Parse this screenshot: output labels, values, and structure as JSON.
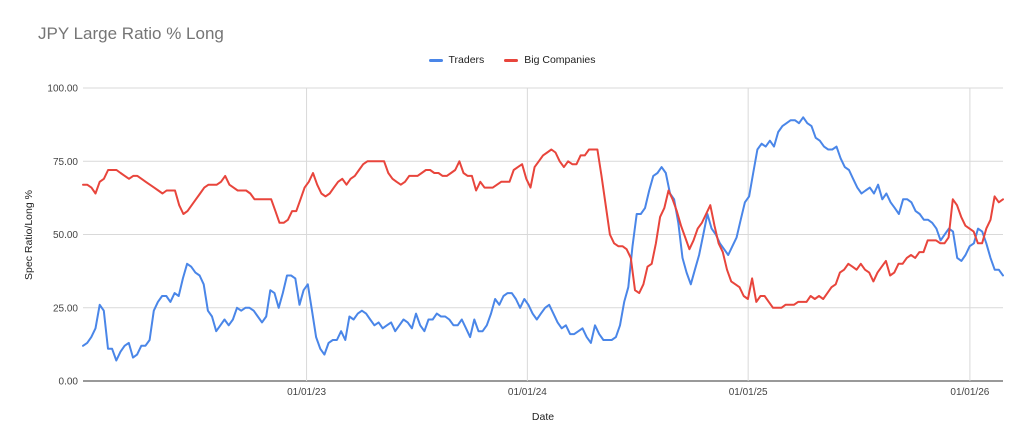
{
  "chart_data": {
    "type": "line",
    "title": "JPY Large Ratio % Long",
    "xlabel": "Date",
    "ylabel": "Spec Ratio/Long %",
    "ylim": [
      0,
      100
    ],
    "yticks": [
      "0.00",
      "25.00",
      "50.00",
      "75.00",
      "100.00"
    ],
    "xticks": [
      {
        "label": "01/01/23",
        "t": 0.243
      },
      {
        "label": "01/01/24",
        "t": 0.483
      },
      {
        "label": "01/01/25",
        "t": 0.723
      },
      {
        "label": "01/01/26",
        "t": 0.964
      }
    ],
    "grid": true,
    "legend_position": "top-center",
    "series": [
      {
        "name": "Traders",
        "color": "#4a86e8",
        "values": [
          12,
          13,
          15,
          18,
          26,
          24,
          11,
          11,
          7,
          10,
          12,
          13,
          8,
          9,
          12,
          12,
          14,
          24,
          27,
          29,
          29,
          27,
          30,
          29,
          35,
          40,
          39,
          37,
          36,
          33,
          24,
          22,
          17,
          19,
          21,
          19,
          21,
          25,
          24,
          25,
          25,
          24,
          22,
          20,
          22,
          31,
          30,
          25,
          30,
          36,
          36,
          35,
          26,
          31,
          33,
          24,
          15,
          11,
          9,
          13,
          14,
          14,
          17,
          14,
          22,
          21,
          23,
          24,
          23,
          21,
          19,
          20,
          18,
          19,
          20,
          17,
          19,
          21,
          20,
          18,
          23,
          19,
          17,
          21,
          21,
          23,
          22,
          22,
          21,
          19,
          19,
          21,
          18,
          15,
          21,
          17,
          17,
          19,
          23,
          28,
          26,
          29,
          30,
          30,
          28,
          25,
          28,
          26,
          23,
          21,
          23,
          25,
          26,
          23,
          20,
          18,
          19,
          16,
          16,
          17,
          18,
          15,
          13,
          19,
          16,
          14,
          14,
          14,
          15,
          19,
          27,
          32,
          46,
          57,
          57,
          59,
          65,
          70,
          71,
          73,
          71,
          64,
          62,
          54,
          42,
          37,
          33,
          38,
          43,
          50,
          57,
          52,
          50,
          47,
          45,
          43,
          46,
          49,
          55,
          61,
          63,
          71,
          79,
          81,
          80,
          82,
          80,
          85,
          87,
          88,
          89,
          89,
          88,
          90,
          88,
          87,
          83,
          82,
          80,
          79,
          79,
          80,
          76,
          73,
          72,
          69,
          66,
          64,
          65,
          66,
          64,
          67,
          62,
          64,
          61,
          59,
          57,
          62,
          62,
          61,
          58,
          57,
          55,
          55,
          54,
          52,
          48,
          50,
          52,
          51,
          42,
          41,
          43,
          46,
          47,
          52,
          51,
          47,
          42,
          38,
          38,
          36
        ]
      },
      {
        "name": "Big Companies",
        "color": "#e8453c",
        "values": [
          67,
          67,
          66,
          64,
          68,
          69,
          72,
          72,
          72,
          71,
          70,
          69,
          70,
          70,
          69,
          68,
          67,
          66,
          65,
          64,
          65,
          65,
          65,
          60,
          57,
          58,
          60,
          62,
          64,
          66,
          67,
          67,
          67,
          68,
          70,
          67,
          66,
          65,
          65,
          65,
          64,
          62,
          62,
          62,
          62,
          62,
          58,
          54,
          54,
          55,
          58,
          58,
          62,
          66,
          68,
          71,
          67,
          64,
          63,
          64,
          66,
          68,
          69,
          67,
          69,
          70,
          72,
          74,
          75,
          75,
          75,
          75,
          75,
          71,
          69,
          68,
          67,
          68,
          70,
          70,
          70,
          71,
          72,
          72,
          71,
          71,
          70,
          70,
          71,
          72,
          75,
          71,
          70,
          70,
          65,
          68,
          66,
          66,
          66,
          67,
          68,
          68,
          68,
          72,
          73,
          74,
          69,
          66,
          73,
          75,
          77,
          78,
          79,
          78,
          75,
          73,
          75,
          74,
          74,
          77,
          77,
          79,
          79,
          79,
          70,
          60,
          50,
          47,
          46,
          46,
          45,
          42,
          31,
          30,
          33,
          39,
          40,
          47,
          56,
          59,
          65,
          62,
          58,
          53,
          49,
          45,
          48,
          52,
          54,
          57,
          60,
          53,
          47,
          44,
          38,
          34,
          33,
          32,
          29,
          28,
          35,
          27,
          29,
          29,
          27,
          25,
          25,
          25,
          26,
          26,
          26,
          27,
          27,
          27,
          29,
          28,
          29,
          28,
          30,
          32,
          33,
          37,
          38,
          40,
          39,
          38,
          40,
          38,
          37,
          34,
          37,
          39,
          41,
          36,
          37,
          40,
          40,
          42,
          43,
          42,
          44,
          44,
          48,
          48,
          48,
          47,
          47,
          49,
          62,
          60,
          56,
          53,
          52,
          51,
          47,
          47,
          52,
          55,
          63,
          61,
          62
        ]
      }
    ]
  }
}
